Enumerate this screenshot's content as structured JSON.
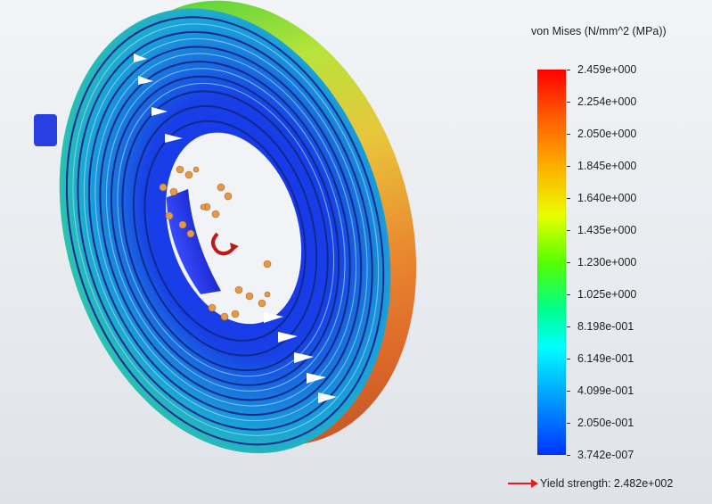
{
  "legend": {
    "title": "von Mises (N/mm^2 (MPa))",
    "labels": [
      "2.459e+000",
      "2.254e+000",
      "2.050e+000",
      "1.845e+000",
      "1.640e+000",
      "1.435e+000",
      "1.230e+000",
      "1.025e+000",
      "8.198e-001",
      "6.149e-001",
      "4.099e-001",
      "2.050e-001",
      "3.742e-007"
    ],
    "max": 2.459,
    "min": 3.742e-07,
    "colors": [
      "#ff0000",
      "#ff5a00",
      "#ffae00",
      "#e8ff00",
      "#55ff00",
      "#00ff8a",
      "#00ffff",
      "#00a6ff",
      "#0033ff"
    ]
  },
  "yield": {
    "text": "Yield strength: 2.482e+002",
    "arrow_color": "#e02020"
  },
  "model": {
    "icon": "spiral-spring-stress-plot"
  }
}
